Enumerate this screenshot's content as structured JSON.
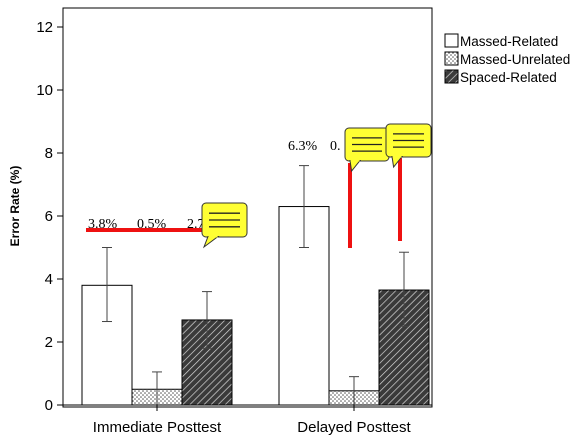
{
  "chart_data": {
    "type": "bar",
    "title": "",
    "xlabel": "",
    "ylabel": "Error Rate (%)",
    "ylim": [
      0,
      12.5
    ],
    "yticks": [
      0,
      2,
      4,
      6,
      8,
      10,
      12
    ],
    "grid": false,
    "legend_position": "top-right",
    "categories": [
      "Immediate Posttest",
      "Delayed Posttest"
    ],
    "series": [
      {
        "name": "Massed-Related",
        "pattern": "solid-white",
        "values": [
          3.8,
          6.3
        ],
        "error_low": [
          2.65,
          5.0
        ],
        "error_high": [
          5.0,
          7.6
        ]
      },
      {
        "name": "Massed-Unrelated",
        "pattern": "dotted",
        "values": [
          0.5,
          0.45
        ],
        "error_low": [
          0.0,
          0.0
        ],
        "error_high": [
          1.05,
          0.9
        ]
      },
      {
        "name": "Spaced-Related",
        "pattern": "diagonal-hatch",
        "values": [
          2.7,
          3.65
        ],
        "error_low": [
          1.8,
          2.5
        ],
        "error_high": [
          3.6,
          4.85
        ]
      }
    ],
    "annotations": {
      "immediate": [
        "3.8%",
        "0.5%",
        "2.7"
      ],
      "delayed": [
        "6.3%",
        "0."
      ]
    },
    "marker_color": "#ee1111",
    "callout_color": "#ffff33"
  }
}
